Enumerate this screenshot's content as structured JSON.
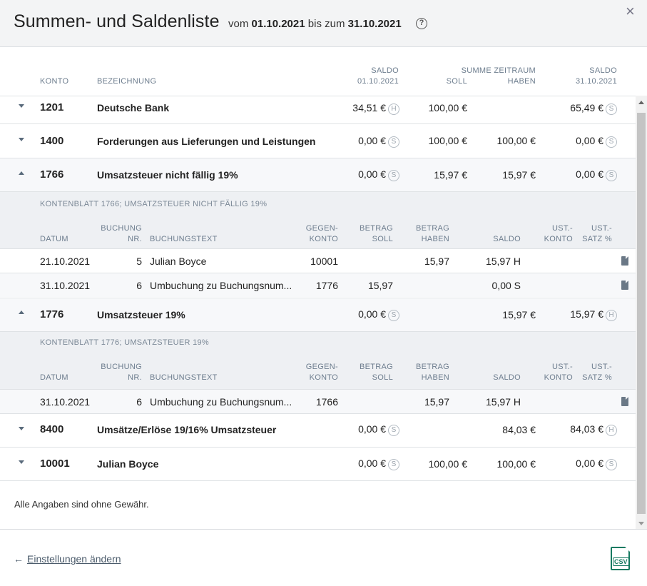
{
  "header": {
    "title": "Summen- und Saldenliste",
    "range_prefix": "vom",
    "date_from": "01.10.2021",
    "range_mid": "bis zum",
    "date_to": "31.10.2021",
    "help_icon": "?",
    "close_icon": "×"
  },
  "columns": {
    "konto": "KONTO",
    "bezeichnung": "BEZEICHNUNG",
    "saldo_start_l1": "SALDO",
    "saldo_start_l2": "01.10.2021",
    "summe": "SUMME ZEITRAUM",
    "soll": "SOLL",
    "haben": "HABEN",
    "saldo_end_l1": "SALDO",
    "saldo_end_l2": "31.10.2021"
  },
  "accounts": [
    {
      "konto": "1201",
      "name": "Deutsche Bank",
      "saldo_start": "34,51 €",
      "saldo_start_sh": "H",
      "soll": "100,00 €",
      "haben": "",
      "saldo_end": "65,49 €",
      "saldo_end_sh": "S"
    },
    {
      "konto": "1400",
      "name": "Forderungen aus Lieferungen und Leistungen",
      "saldo_start": "0,00 €",
      "saldo_start_sh": "S",
      "soll": "100,00 €",
      "haben": "100,00 €",
      "saldo_end": "0,00 €",
      "saldo_end_sh": "S"
    },
    {
      "konto": "1766",
      "name": "Umsatzsteuer nicht fällig 19%",
      "saldo_start": "0,00 €",
      "saldo_start_sh": "S",
      "soll": "15,97 €",
      "haben": "15,97 €",
      "saldo_end": "0,00 €",
      "saldo_end_sh": "S"
    },
    {
      "konto": "1776",
      "name": "Umsatzsteuer 19%",
      "saldo_start": "0,00 €",
      "saldo_start_sh": "S",
      "soll": "",
      "haben": "15,97 €",
      "saldo_end": "15,97 €",
      "saldo_end_sh": "H"
    },
    {
      "konto": "8400",
      "name": "Umsätze/Erlöse 19/16% Umsatzsteuer",
      "saldo_start": "0,00 €",
      "saldo_start_sh": "S",
      "soll": "",
      "haben": "84,03 €",
      "saldo_end": "84,03 €",
      "saldo_end_sh": "H"
    },
    {
      "konto": "10001",
      "name": "Julian Boyce",
      "saldo_start": "0,00 €",
      "saldo_start_sh": "S",
      "soll": "100,00 €",
      "haben": "100,00 €",
      "saldo_end": "0,00 €",
      "saldo_end_sh": "S"
    }
  ],
  "ledger_columns": {
    "datum": "DATUM",
    "buchung_l1": "BUCHUNG",
    "buchung_l2": "NR.",
    "text": "BUCHUNGSTEXT",
    "gegen_l1": "GEGEN-",
    "gegen_l2": "KONTO",
    "bsoll_l1": "BETRAG",
    "bsoll_l2": "SOLL",
    "bhaben_l1": "BETRAG",
    "bhaben_l2": "HABEN",
    "saldo": "SALDO",
    "ust_konto_l1": "UST.-",
    "ust_konto_l2": "KONTO",
    "ust_satz_l1": "UST.-",
    "ust_satz_l2": "SATZ %"
  },
  "ledgers": [
    {
      "title": "KONTENBLATT 1766; UMSATZSTEUER NICHT FÄLLIG 19%",
      "rows": [
        {
          "datum": "21.10.2021",
          "nr": "5",
          "text": "Julian Boyce",
          "gegen": "10001",
          "soll": "",
          "haben": "15,97",
          "saldo": "15,97 H",
          "icon": "pdf-icon"
        },
        {
          "datum": "31.10.2021",
          "nr": "6",
          "text": "Umbuchung zu Buchungsnum...",
          "gegen": "1776",
          "soll": "15,97",
          "haben": "",
          "saldo": "0,00 S",
          "icon": "pdf-icon"
        }
      ]
    },
    {
      "title": "KONTENBLATT 1776; UMSATZSTEUER 19%",
      "rows": [
        {
          "datum": "31.10.2021",
          "nr": "6",
          "text": "Umbuchung zu Buchungsnum...",
          "gegen": "1766",
          "soll": "",
          "haben": "15,97",
          "saldo": "15,97 H",
          "icon": "pdf-icon"
        }
      ]
    }
  ],
  "disclaimer": "Alle Angaben sind ohne Gewähr.",
  "footer": {
    "back_arrow": "←",
    "back_label": "Einstellungen ändern",
    "csv_label": "CSV"
  }
}
